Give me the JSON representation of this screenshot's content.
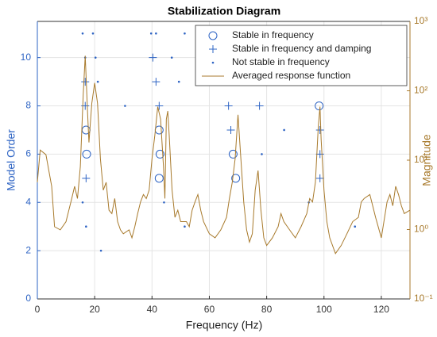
{
  "chart_data": {
    "type": "scatter",
    "title": "Stabilization Diagram",
    "xlabel": "Frequency (Hz)",
    "ylabel": "Model Order",
    "y2label": "Magnitude",
    "xlim": [
      0,
      130
    ],
    "xticks": [
      0,
      20,
      40,
      60,
      80,
      100,
      120
    ],
    "ylim": [
      0,
      11.5
    ],
    "yticks": [
      0,
      2,
      4,
      6,
      8,
      10
    ],
    "y2lim": [
      0.1,
      1000
    ],
    "y2log": true,
    "y2ticks": [
      {
        "value": 0.1,
        "label": "10⁻¹"
      },
      {
        "value": 1,
        "label": "10⁰"
      },
      {
        "value": 10,
        "label": "10¹"
      },
      {
        "value": 100,
        "label": "10²"
      },
      {
        "value": 1000,
        "label": "10³"
      }
    ],
    "grid": true,
    "legend": "upper right",
    "series": [
      {
        "name": "Stable in frequency",
        "color": "#2e64c4",
        "marker": "circle",
        "x": [
          17,
          17.2,
          42.5,
          42.8,
          42.5,
          68.3,
          69.2,
          98.3
        ],
        "values": [
          7,
          6,
          7,
          6,
          5,
          6,
          5,
          8
        ]
      },
      {
        "name": "Stable in frequency and damping",
        "color": "#2e64c4",
        "marker": "plus",
        "x": [
          16.7,
          16.7,
          17,
          40.3,
          41.4,
          42.5,
          66.7,
          67.5,
          77.5,
          98.6,
          98.6,
          98.6
        ],
        "values": [
          9,
          8,
          5,
          10,
          9,
          8,
          8,
          7,
          8,
          7,
          6,
          5
        ]
      },
      {
        "name": "Not stable in frequency",
        "color": "#2e64c4",
        "marker": "dot",
        "x": [
          15.8,
          19.4,
          39.7,
          41.4,
          51.4,
          16.7,
          20.3,
          46.9,
          21.1,
          49.4,
          30.6,
          86.1,
          78.3,
          15.8,
          44.2,
          94.7,
          17,
          51.4,
          110.8,
          22.2
        ],
        "values": [
          11,
          11,
          11,
          11,
          11,
          10,
          10,
          10,
          9,
          9,
          8,
          7,
          6,
          4,
          4,
          4,
          3,
          3,
          3,
          2
        ]
      },
      {
        "name": "Averaged response function",
        "color": "#a87a2c",
        "marker": "line",
        "axis": "y2",
        "x": [
          0,
          1,
          3,
          5,
          6,
          8,
          10,
          12,
          13,
          14,
          15,
          16,
          16.7,
          17.5,
          18,
          19,
          20,
          21,
          22,
          23,
          24,
          25,
          26,
          27,
          28,
          29,
          30,
          32,
          33,
          34,
          35,
          36,
          37,
          38,
          39,
          40,
          41,
          42,
          43,
          44,
          44.5,
          45,
          45.5,
          46,
          47,
          48,
          49,
          50,
          52,
          53,
          54,
          55,
          56,
          57,
          58,
          60,
          62,
          64,
          66,
          67,
          68,
          69,
          70,
          71,
          72,
          73,
          74,
          75,
          76,
          77,
          78,
          79,
          80,
          82,
          84,
          85,
          86,
          88,
          90,
          92,
          94,
          95,
          96,
          97,
          98,
          98.6,
          99,
          100,
          101,
          102,
          104,
          106,
          108,
          110,
          112,
          113,
          114,
          116,
          118,
          120,
          122,
          123,
          124,
          125,
          126,
          127,
          128,
          130
        ],
        "values": [
          4.8,
          14,
          12,
          4.2,
          1.1,
          0.99,
          1.3,
          2.8,
          4.2,
          2.8,
          8.1,
          87,
          320,
          51,
          18,
          66,
          130,
          66,
          10.5,
          3.7,
          4.8,
          1.9,
          1.7,
          2.8,
          1.3,
          0.99,
          0.87,
          0.99,
          0.76,
          1.1,
          1.7,
          2.5,
          3.2,
          2.8,
          3.7,
          10.5,
          23,
          59,
          39,
          8.1,
          2.8,
          39,
          51,
          23,
          3.7,
          1.5,
          1.9,
          1.3,
          1.3,
          1.1,
          1.9,
          2.5,
          3.2,
          1.9,
          1.3,
          0.87,
          0.76,
          0.99,
          1.5,
          2.8,
          4.8,
          10.5,
          45,
          10.5,
          2.5,
          0.99,
          0.66,
          0.87,
          3.7,
          7.1,
          1.9,
          0.76,
          0.59,
          0.76,
          1.1,
          1.7,
          1.3,
          0.99,
          0.76,
          1.1,
          1.7,
          2.8,
          2.5,
          4.8,
          30,
          59,
          20,
          3.7,
          1.3,
          0.76,
          0.45,
          0.59,
          0.87,
          1.3,
          1.5,
          2.5,
          2.8,
          3.2,
          1.5,
          0.76,
          2.5,
          3.2,
          2.2,
          4.2,
          3.2,
          2.2,
          1.7,
          1.9
        ]
      }
    ]
  }
}
